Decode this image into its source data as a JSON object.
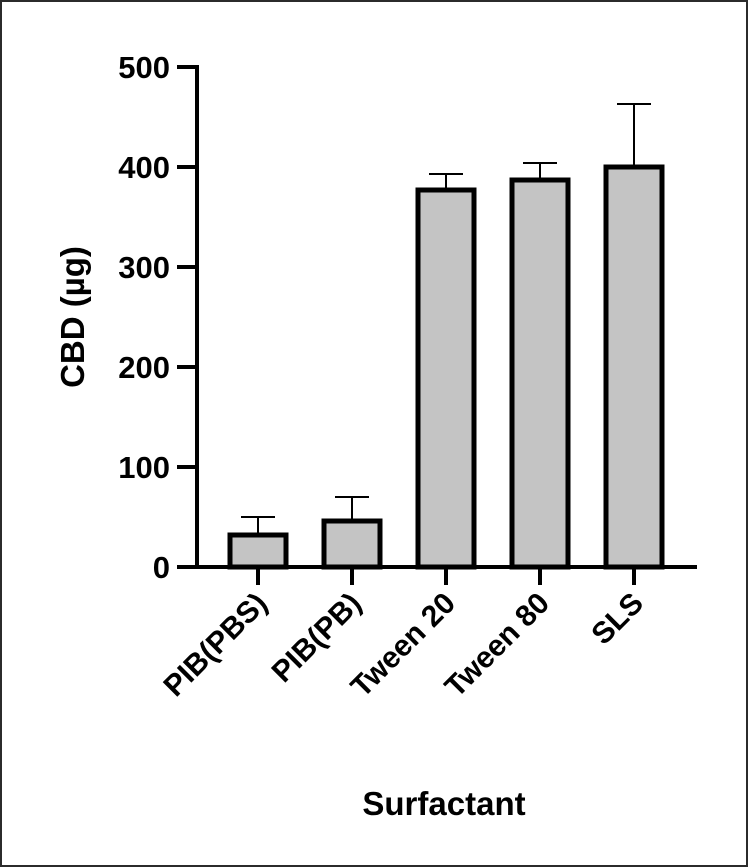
{
  "chart_data": {
    "type": "bar",
    "title": "",
    "xlabel": "Surfactant",
    "ylabel": "CBD (µg)",
    "ylim": [
      0,
      500
    ],
    "yticks": [
      0,
      100,
      200,
      300,
      400,
      500
    ],
    "categories": [
      "PIB(PBS)",
      "PIB(PB)",
      "Tween 20",
      "Tween 80",
      "SLS"
    ],
    "values": [
      32,
      46,
      377,
      387,
      400
    ],
    "errors": [
      18,
      24,
      16,
      17,
      63
    ],
    "grid": false,
    "legend": "none",
    "bar_color": "#c4c4c4",
    "edge_color": "#000000"
  }
}
